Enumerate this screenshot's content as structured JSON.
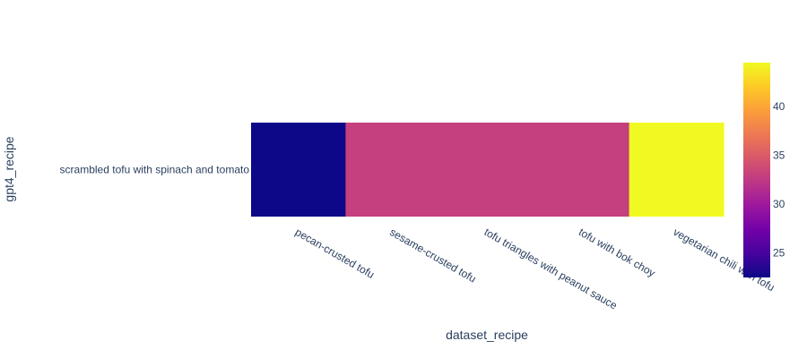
{
  "chart_data": {
    "type": "heatmap",
    "xlabel": "dataset_recipe",
    "ylabel": "gpt4_recipe",
    "x": [
      "pecan-crusted tofu",
      "sesame-crusted tofu",
      "tofu triangles with peanut sauce",
      "tofu with bok choy",
      "vegetarian chili with tofu"
    ],
    "y": [
      "scrambled tofu with spinach and tomato"
    ],
    "z": [
      [
        22.5,
        33.0,
        33.0,
        33.0,
        44.5
      ]
    ],
    "colorscale": [
      "#0d0887",
      "#46039f",
      "#7201a8",
      "#9c179e",
      "#bd3786",
      "#d8576b",
      "#ed7953",
      "#fb9f3a",
      "#fdca26",
      "#f0f921"
    ],
    "colorbar": {
      "range": [
        22.5,
        44.5
      ],
      "ticks": [
        25,
        30,
        35,
        40
      ]
    }
  }
}
